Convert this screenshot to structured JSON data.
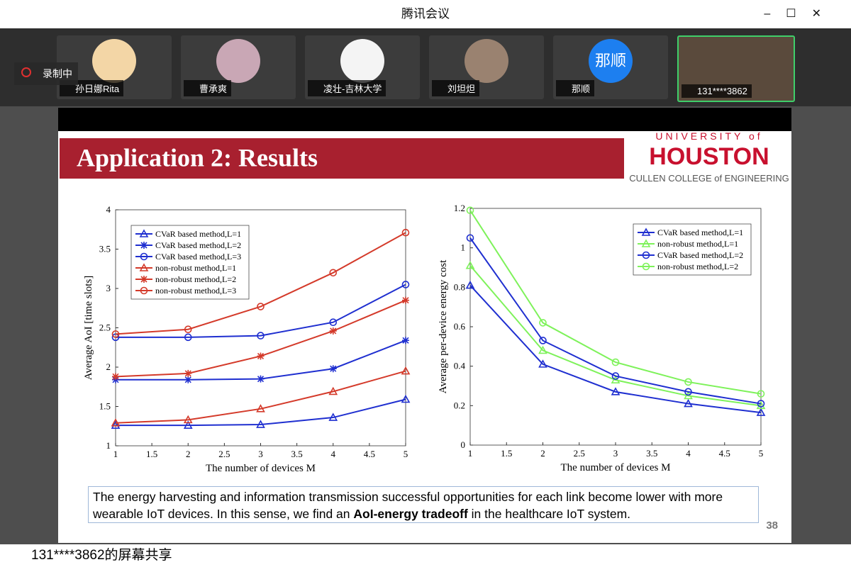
{
  "window": {
    "title": "腾讯会议",
    "recording": "录制中",
    "share_label": "131****3862的屏幕共享"
  },
  "participants": [
    {
      "name": "孙日娜Rita"
    },
    {
      "name": "曹承爽"
    },
    {
      "name": "凌壮-吉林大学"
    },
    {
      "name": "刘坦炟"
    },
    {
      "name": "那顺",
      "avatar": "那顺"
    },
    {
      "name": "131****3862"
    }
  ],
  "slide": {
    "title": "Application 2: Results",
    "logo_top": "UNIVERSITY of",
    "logo_main": "HOUSTON",
    "logo_sub": "CULLEN COLLEGE of ENGINEERING",
    "caption": [
      "The energy harvesting and information transmission successful opportunities for each link become lower with more wearable IoT devices. In this sense, we find an ",
      "AoI-energy tradeoff",
      " in the healthcare IoT system."
    ],
    "page": "38"
  },
  "chart_data": [
    {
      "type": "line",
      "xlabel": "The number of devices M",
      "ylabel": "Average AoI [time slots]",
      "x": [
        1,
        2,
        3,
        4,
        5
      ],
      "xlim": [
        1,
        5
      ],
      "ylim": [
        1,
        4
      ],
      "xticks": [
        1,
        1.5,
        2,
        2.5,
        3,
        3.5,
        4,
        4.5,
        5
      ],
      "yticks": [
        1,
        1.5,
        2,
        2.5,
        3,
        3.5,
        4
      ],
      "legend": "upper left",
      "series": [
        {
          "name": "CVaR based method,L=1",
          "color": "#1f2fd0",
          "marker": "triangle",
          "values": [
            1.26,
            1.26,
            1.27,
            1.36,
            1.59
          ]
        },
        {
          "name": "CVaR based method,L=2",
          "color": "#1f2fd0",
          "marker": "star",
          "values": [
            1.84,
            1.84,
            1.85,
            1.98,
            2.34
          ]
        },
        {
          "name": "CVaR based method,L=3",
          "color": "#1f2fd0",
          "marker": "circle",
          "values": [
            2.38,
            2.38,
            2.4,
            2.57,
            3.05
          ]
        },
        {
          "name": "non-robust method,L=1",
          "color": "#d43a2a",
          "marker": "triangle",
          "values": [
            1.29,
            1.33,
            1.47,
            1.69,
            1.95
          ]
        },
        {
          "name": "non-robust method,L=2",
          "color": "#d43a2a",
          "marker": "star",
          "values": [
            1.88,
            1.92,
            2.14,
            2.46,
            2.85
          ]
        },
        {
          "name": "non-robust method,L=3",
          "color": "#d43a2a",
          "marker": "circle",
          "values": [
            2.42,
            2.48,
            2.77,
            3.2,
            3.71
          ]
        }
      ]
    },
    {
      "type": "line",
      "xlabel": "The number of devices M",
      "ylabel": "Average per-device energy cost",
      "x": [
        1,
        2,
        3,
        4,
        5
      ],
      "xlim": [
        1,
        5
      ],
      "ylim": [
        0,
        1.2
      ],
      "xticks": [
        1,
        1.5,
        2,
        2.5,
        3,
        3.5,
        4,
        4.5,
        5
      ],
      "yticks": [
        0,
        0.2,
        0.4,
        0.6,
        0.8,
        1,
        1.2
      ],
      "legend": "upper right",
      "series": [
        {
          "name": "CVaR based method,L=1",
          "color": "#1f2fd0",
          "marker": "triangle",
          "values": [
            0.81,
            0.41,
            0.27,
            0.21,
            0.165
          ]
        },
        {
          "name": "non-robust method,L=1",
          "color": "#7ef25a",
          "marker": "triangle",
          "values": [
            0.91,
            0.48,
            0.33,
            0.25,
            0.2
          ]
        },
        {
          "name": "CVaR based method,L=2",
          "color": "#1f2fd0",
          "marker": "circle",
          "values": [
            1.05,
            0.53,
            0.35,
            0.27,
            0.21
          ]
        },
        {
          "name": "non-robust method,L=2",
          "color": "#7ef25a",
          "marker": "circle",
          "values": [
            1.19,
            0.62,
            0.42,
            0.32,
            0.26
          ]
        }
      ]
    }
  ]
}
